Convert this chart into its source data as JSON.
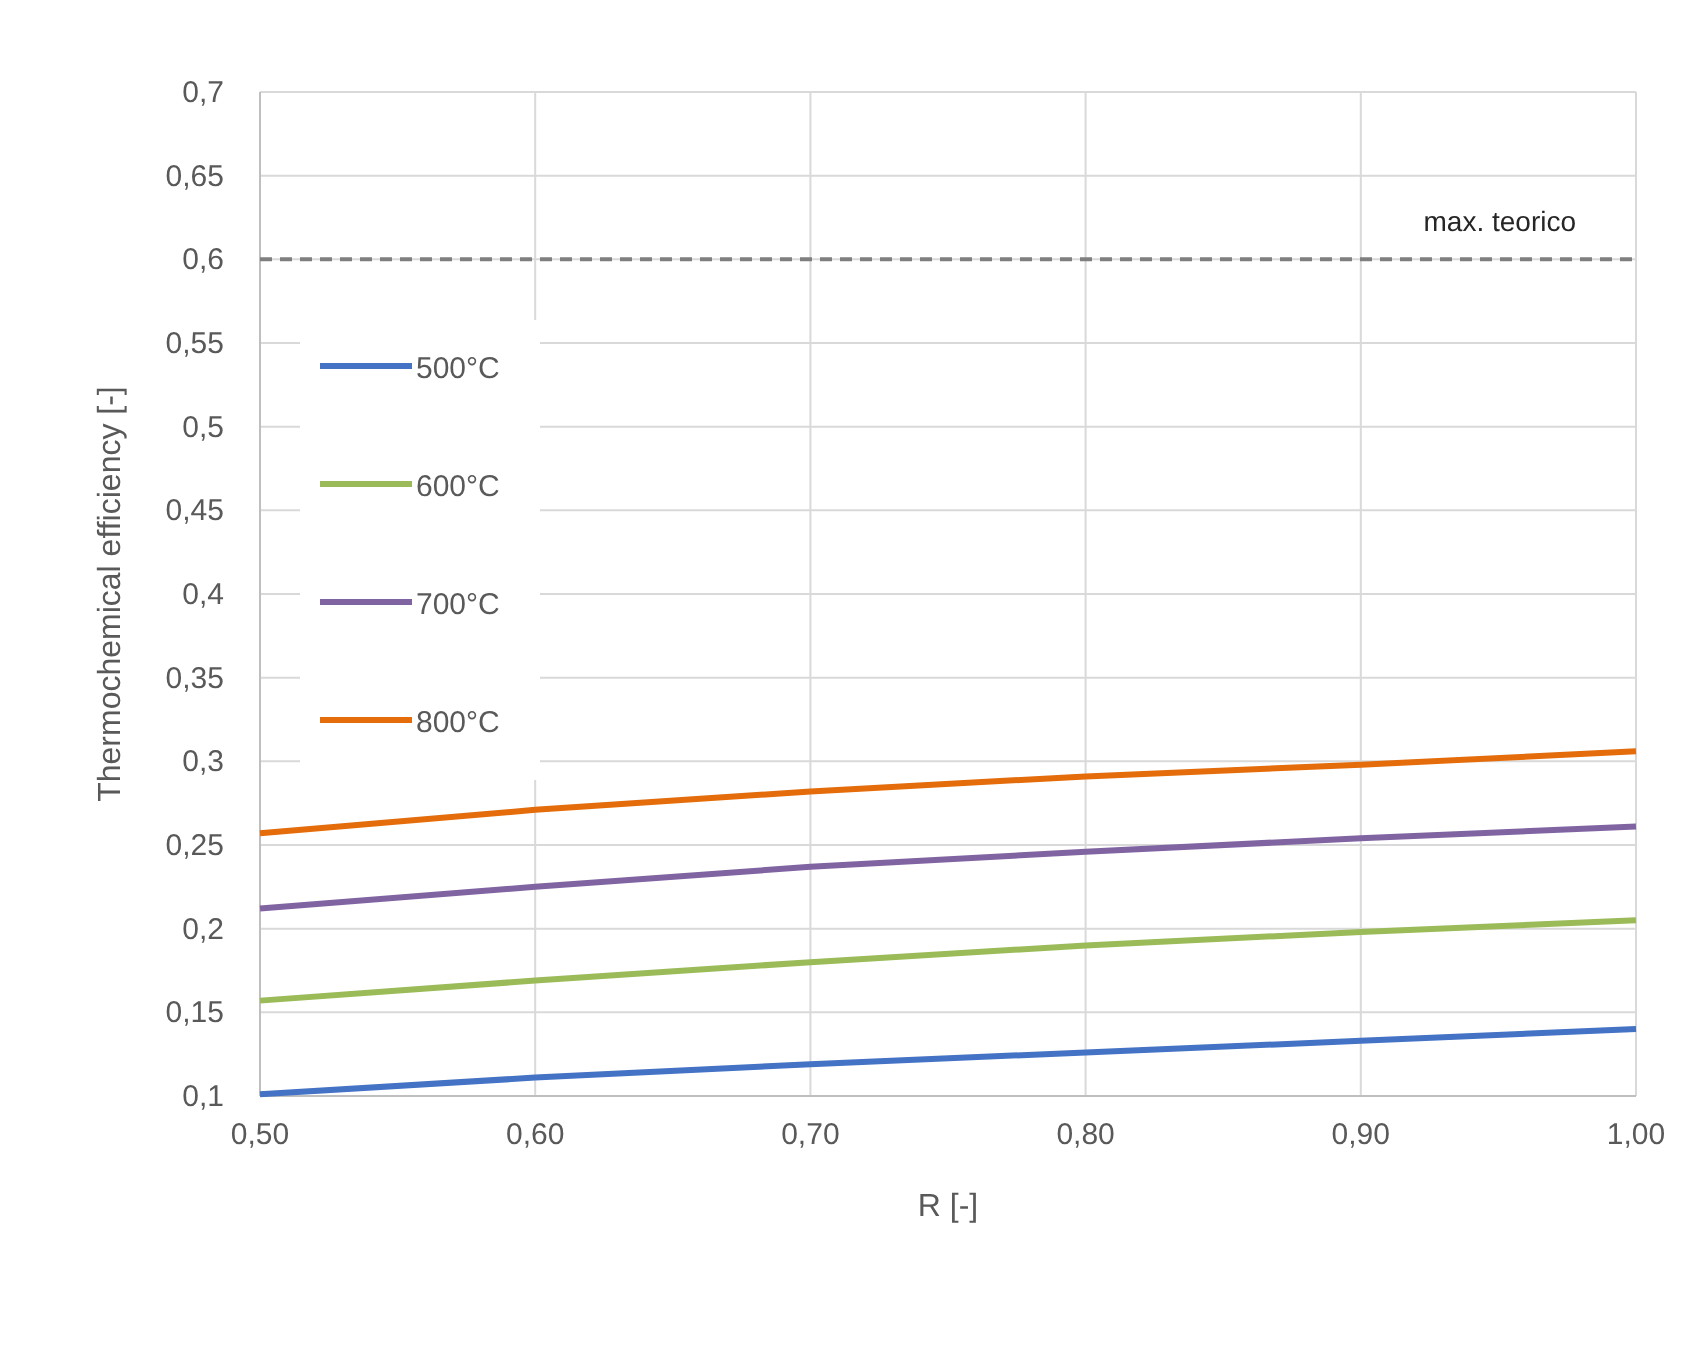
{
  "chart_data": {
    "type": "line",
    "xlabel": "R [-]",
    "ylabel": "Thermochemical efficiency [-]",
    "x": [
      0.5,
      0.6,
      0.7,
      0.8,
      0.9,
      1.0
    ],
    "series": [
      {
        "name": "500°C",
        "color": "#4472c4",
        "values": [
          0.101,
          0.111,
          0.119,
          0.126,
          0.133,
          0.14
        ]
      },
      {
        "name": "600°C",
        "color": "#9bbb59",
        "values": [
          0.157,
          0.169,
          0.18,
          0.19,
          0.198,
          0.205
        ]
      },
      {
        "name": "700°C",
        "color": "#8064a2",
        "values": [
          0.212,
          0.225,
          0.237,
          0.246,
          0.254,
          0.261
        ]
      },
      {
        "name": "800°C",
        "color": "#e46c0a",
        "values": [
          0.257,
          0.271,
          0.282,
          0.291,
          0.298,
          0.306
        ]
      }
    ],
    "xlim": [
      0.5,
      1.0
    ],
    "xticks": [
      {
        "value": 0.5,
        "label": "0,50"
      },
      {
        "value": 0.6,
        "label": "0,60"
      },
      {
        "value": 0.7,
        "label": "0,70"
      },
      {
        "value": 0.8,
        "label": "0,80"
      },
      {
        "value": 0.9,
        "label": "0,90"
      },
      {
        "value": 1.0,
        "label": "1,00"
      }
    ],
    "ylim": [
      0.1,
      0.7
    ],
    "yticks": [
      {
        "value": 0.1,
        "label": "0,1"
      },
      {
        "value": 0.15,
        "label": "0,15"
      },
      {
        "value": 0.2,
        "label": "0,2"
      },
      {
        "value": 0.25,
        "label": "0,25"
      },
      {
        "value": 0.3,
        "label": "0,3"
      },
      {
        "value": 0.35,
        "label": "0,35"
      },
      {
        "value": 0.4,
        "label": "0,4"
      },
      {
        "value": 0.45,
        "label": "0,45"
      },
      {
        "value": 0.5,
        "label": "0,5"
      },
      {
        "value": 0.55,
        "label": "0,55"
      },
      {
        "value": 0.6,
        "label": "0,6"
      },
      {
        "value": 0.65,
        "label": "0,65"
      },
      {
        "value": 0.7,
        "label": "0,7"
      }
    ],
    "ref_lines": [
      {
        "axis": "y",
        "value": 0.6,
        "label": "max. teorico",
        "color": "#7f7f7f",
        "line_style": "dashed"
      }
    ],
    "grid": true,
    "legend": "left",
    "marker": "none",
    "line_style": "solid"
  }
}
